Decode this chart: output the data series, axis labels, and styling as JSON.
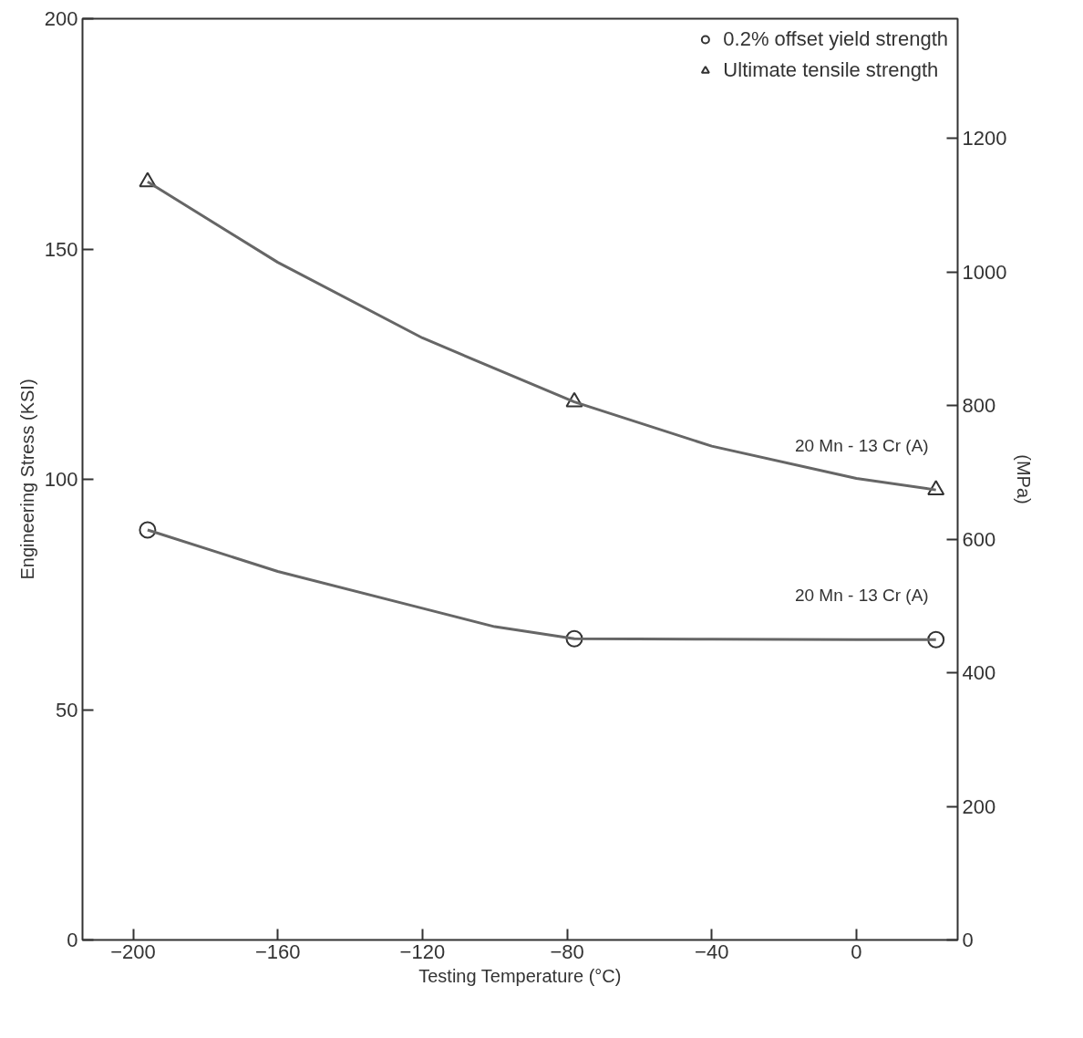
{
  "chart_data": {
    "type": "scatter",
    "xlabel": "Testing Temperature (°C)",
    "ylabel": "Engineering Stress (KSI)",
    "y2label": "(MPa)",
    "xlim": [
      -214,
      28
    ],
    "ylim": [
      0,
      200
    ],
    "y2lim": [
      0,
      1379
    ],
    "xticks": [
      -200,
      -160,
      -120,
      -80,
      -40,
      0
    ],
    "yticks": [
      0,
      50,
      100,
      150,
      200
    ],
    "y2ticks": [
      0,
      200,
      400,
      600,
      800,
      1000,
      1200
    ],
    "grid": false,
    "legend": "top right",
    "series": [
      {
        "name": "0.2% offset yield strength",
        "marker": "circle",
        "color": "#333333",
        "x": [
          -196,
          -78,
          22
        ],
        "values": [
          89,
          65.4,
          65.2
        ]
      },
      {
        "name": "Ultimate tensile strength",
        "marker": "triangle",
        "color": "#333333",
        "x": [
          -196,
          -78,
          22
        ],
        "values": [
          164.6,
          116.8,
          97.7
        ]
      },
      {
        "type": "line",
        "color": "#666666",
        "line_style": "solid",
        "marker": "none",
        "x": [
          -196,
          -160,
          -120,
          -100,
          -78,
          -40,
          0,
          22
        ],
        "values": [
          89,
          80,
          72,
          68,
          65.4,
          65.3,
          65.2,
          65.2
        ]
      },
      {
        "type": "line",
        "color": "#666666",
        "line_style": "solid",
        "marker": "none",
        "x": [
          -196,
          -160,
          -120,
          -78,
          -40,
          0,
          22
        ],
        "values": [
          164.6,
          147.1,
          130.7,
          116.8,
          107.2,
          100.2,
          97.7
        ]
      }
    ],
    "annotations": [
      "20 Mn - 13 Cr (A)",
      "20 Mn - 13 Cr (A)"
    ]
  }
}
